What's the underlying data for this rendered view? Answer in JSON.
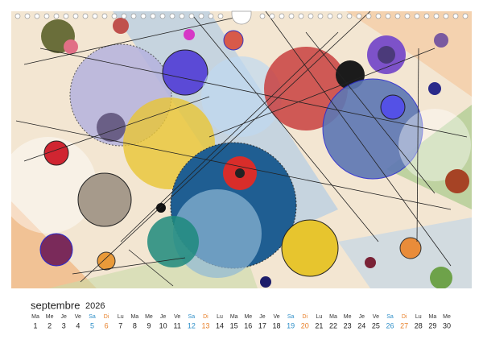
{
  "calendar": {
    "month": "septembre",
    "year": "2026",
    "days": [
      {
        "weekday": "Ma",
        "day": 1
      },
      {
        "weekday": "Me",
        "day": 2
      },
      {
        "weekday": "Je",
        "day": 3
      },
      {
        "weekday": "Ve",
        "day": 4
      },
      {
        "weekday": "Sa",
        "day": 5
      },
      {
        "weekday": "Di",
        "day": 6
      },
      {
        "weekday": "Lu",
        "day": 7
      },
      {
        "weekday": "Ma",
        "day": 8
      },
      {
        "weekday": "Me",
        "day": 9
      },
      {
        "weekday": "Je",
        "day": 10
      },
      {
        "weekday": "Ve",
        "day": 11
      },
      {
        "weekday": "Sa",
        "day": 12
      },
      {
        "weekday": "Di",
        "day": 13
      },
      {
        "weekday": "Lu",
        "day": 14
      },
      {
        "weekday": "Ma",
        "day": 15
      },
      {
        "weekday": "Me",
        "day": 16
      },
      {
        "weekday": "Je",
        "day": 17
      },
      {
        "weekday": "Ve",
        "day": 18
      },
      {
        "weekday": "Sa",
        "day": 19
      },
      {
        "weekday": "Di",
        "day": 20
      },
      {
        "weekday": "Lu",
        "day": 21
      },
      {
        "weekday": "Ma",
        "day": 22
      },
      {
        "weekday": "Me",
        "day": 23
      },
      {
        "weekday": "Je",
        "day": 24
      },
      {
        "weekday": "Ve",
        "day": 25
      },
      {
        "weekday": "Sa",
        "day": 26
      },
      {
        "weekday": "Di",
        "day": 27
      },
      {
        "weekday": "Lu",
        "day": 28
      },
      {
        "weekday": "Ma",
        "day": 29
      },
      {
        "weekday": "Me",
        "day": 30
      }
    ]
  }
}
